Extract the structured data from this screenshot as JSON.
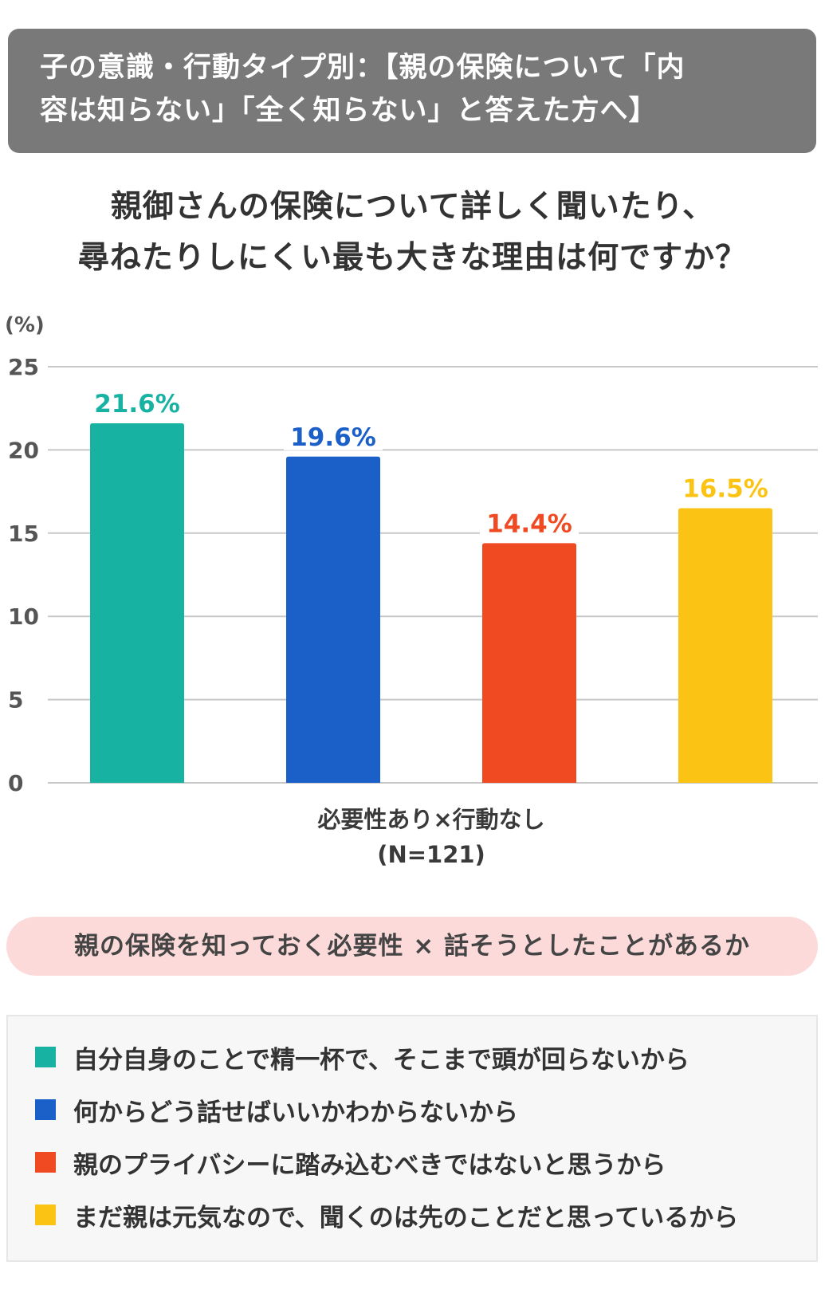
{
  "banner": {
    "line1": "子の意識・行動タイプ別：【親の保険について「内",
    "line2": "容は知らない」「全く知らない」と答えた方へ】"
  },
  "question": {
    "line1": "親御さんの保険について詳しく聞いたり、",
    "line2": "尋ねたりしにくい最も大きな理由は何ですか？"
  },
  "chart_data": {
    "type": "bar",
    "unit_label": "(%)",
    "ylim": [
      0,
      25
    ],
    "yticks": [
      0,
      5,
      10,
      15,
      20,
      25
    ],
    "grid": true,
    "category_label_line1": "必要性あり×行動なし",
    "category_label_line2": "(N=121)",
    "series": [
      {
        "name": "自分自身のことで精一杯で、そこまで頭が回らないから",
        "value": 21.6,
        "label": "21.6%",
        "color": "#17b2a2"
      },
      {
        "name": "何からどう話せばいいかわからないから",
        "value": 19.6,
        "label": "19.6%",
        "color": "#1b5fc9"
      },
      {
        "name": "親のプライバシーに踏み込むべきではないと思うから",
        "value": 14.4,
        "label": "14.4%",
        "color": "#f04a23"
      },
      {
        "name": "まだ親は元気なので、聞くのは先のことだと思っているから",
        "value": 16.5,
        "label": "16.5%",
        "color": "#fbc415"
      }
    ]
  },
  "pill_text": "親の保険を知っておく必要性 × 話そうとしたことがあるか",
  "legend": [
    {
      "label": "自分自身のことで精一杯で、そこまで頭が回らないから",
      "color": "#17b2a2"
    },
    {
      "label": "何からどう話せばいいかわからないから",
      "color": "#1b5fc9"
    },
    {
      "label": "親のプライバシーに踏み込むべきではないと思うから",
      "color": "#f04a23"
    },
    {
      "label": "まだ親は元気なので、聞くのは先のことだと思っているから",
      "color": "#fbc415"
    }
  ]
}
